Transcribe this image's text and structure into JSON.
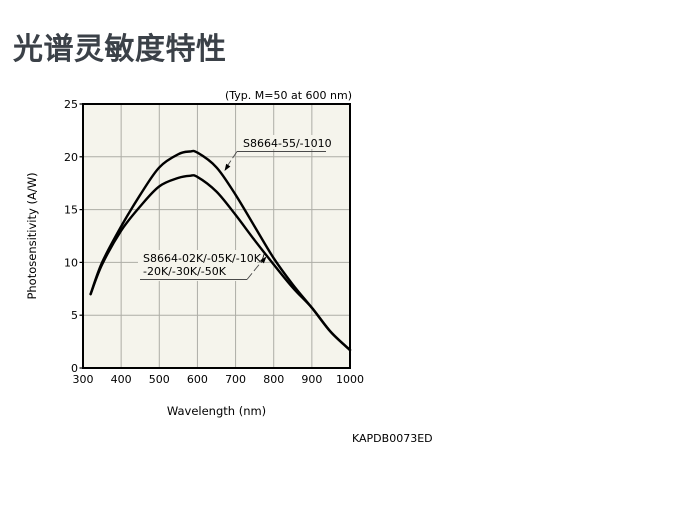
{
  "page": {
    "title": "光谱灵敏度特性",
    "figure_code": "KAPDB0073ED"
  },
  "chart_data": {
    "type": "line",
    "title_note": "(Typ. M=50 at 600 nm)",
    "xlabel": "Wavelength (nm)",
    "ylabel": "Photosensitivity (A/W)",
    "xlim": [
      300,
      1000
    ],
    "ylim": [
      0,
      25
    ],
    "x_ticks": [
      300,
      400,
      500,
      600,
      700,
      800,
      900,
      1000
    ],
    "y_ticks": [
      0,
      5,
      10,
      15,
      20,
      25
    ],
    "grid": true,
    "legend_position": "none",
    "series": [
      {
        "name": "S8664-55/-1010",
        "x": [
          320,
          350,
          400,
          450,
          500,
          550,
          580,
          600,
          650,
          700,
          750,
          800,
          850,
          900,
          950,
          1000
        ],
        "y": [
          7.0,
          10.0,
          13.4,
          16.4,
          19.0,
          20.25,
          20.5,
          20.4,
          19.0,
          16.4,
          13.4,
          10.4,
          7.9,
          5.7,
          3.4,
          1.7
        ]
      },
      {
        "name": "S8664-02K/-05K/-10K/-20K/-30K/-50K",
        "x": [
          320,
          350,
          400,
          450,
          500,
          550,
          580,
          600,
          650,
          700,
          750,
          800,
          850,
          900,
          950,
          1000
        ],
        "y": [
          7.0,
          9.8,
          13.0,
          15.3,
          17.2,
          18.0,
          18.2,
          18.1,
          16.7,
          14.5,
          12.1,
          9.8,
          7.6,
          5.7,
          3.4,
          1.7
        ]
      }
    ],
    "annotations": [
      {
        "label_lines": [
          "S8664-55/-1010"
        ],
        "points_to": {
          "x": 680,
          "y": 18.5
        }
      },
      {
        "label_lines": [
          "S8664-02K/-05K/-10K/",
          "-20K/-30K/-50K"
        ],
        "points_to": {
          "x": 790,
          "y": 10.3
        }
      }
    ],
    "colors": {
      "curve": "#000000",
      "grid": "#adada6",
      "plot_bg": "#f5f4ec",
      "border": "#000000",
      "leader": "#4a4a4a"
    }
  }
}
